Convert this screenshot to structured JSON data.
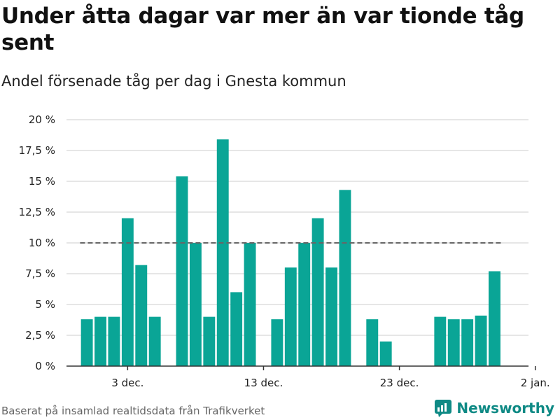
{
  "header": {
    "title": "Under åtta dagar var mer än var tionde tåg sent",
    "subtitle": "Andel försenade tåg per dag i Gnesta kommun"
  },
  "footer": {
    "source": "Baserat på insamlad realtidsdata från Trafikverket",
    "brand": "Newsworthy"
  },
  "colors": {
    "bar": "#0aa596",
    "reference": "#666666",
    "brand": "#0f8a85"
  },
  "chart_data": {
    "type": "bar",
    "x": [
      "2023-11-30",
      "2023-12-01",
      "2023-12-02",
      "2023-12-03",
      "2023-12-04",
      "2023-12-05",
      "2023-12-07",
      "2023-12-08",
      "2023-12-09",
      "2023-12-10",
      "2023-12-11",
      "2023-12-12",
      "2023-12-14",
      "2023-12-15",
      "2023-12-16",
      "2023-12-17",
      "2023-12-18",
      "2023-12-19",
      "2023-12-21",
      "2023-12-22",
      "2023-12-26",
      "2023-12-27",
      "2023-12-28",
      "2023-12-29",
      "2023-12-30"
    ],
    "values": [
      3.8,
      4.0,
      4.0,
      12.0,
      8.2,
      4.0,
      15.4,
      10.0,
      4.0,
      18.4,
      6.0,
      10.0,
      3.8,
      8.0,
      10.0,
      12.0,
      8.0,
      14.3,
      3.8,
      2.0,
      4.0,
      3.8,
      3.8,
      4.1,
      7.7
    ],
    "reference_line": {
      "value": 10,
      "from": "2023-11-30",
      "to": "2023-12-30"
    },
    "ylim": [
      0,
      20
    ],
    "yticks": [
      0,
      2.5,
      5,
      7.5,
      10,
      12.5,
      15,
      17.5,
      20
    ],
    "ytick_labels": [
      "0 %",
      "2,5 %",
      "5 %",
      "7,5 %",
      "10 %",
      "12,5 %",
      "15 %",
      "17,5 %",
      "20 %"
    ],
    "xlim": [
      "2023-11-29",
      "2024-01-02"
    ],
    "xticks": [
      "2023-12-03",
      "2023-12-13",
      "2023-12-23",
      "2024-01-02"
    ],
    "xtick_labels": [
      "3 dec.",
      "13 dec.",
      "23 dec.",
      "2 jan."
    ],
    "grid": true
  }
}
